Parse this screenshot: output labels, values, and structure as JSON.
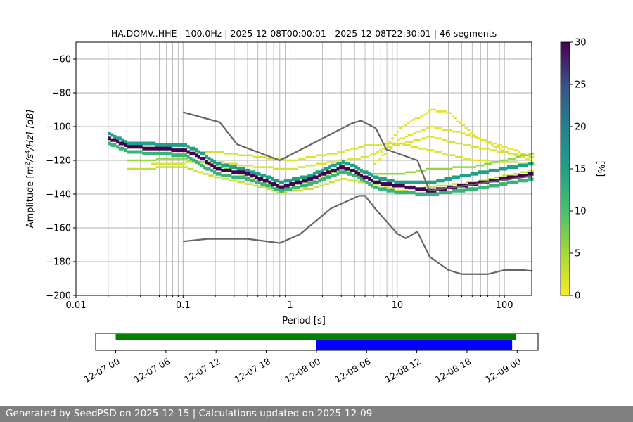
{
  "chart_data": {
    "type": "heatmap",
    "title": "HA.DOMV..HHE | 100.0Hz | 2025-12-08T00:00:01 - 2025-12-08T22:30:01 | 46 segments",
    "xlabel": "Period [s]",
    "ylabel_parts": [
      "Amplitude [",
      "m",
      "2",
      "/",
      "s",
      "4",
      "/Hz] [dB]"
    ],
    "xscale": "log",
    "xlim": [
      0.01,
      180
    ],
    "ylim": [
      -200,
      -50
    ],
    "grid": true,
    "x_ticks": [
      {
        "v": 0.01,
        "label": "0.01"
      },
      {
        "v": 0.1,
        "label": "0.1"
      },
      {
        "v": 1,
        "label": "1"
      },
      {
        "v": 10,
        "label": "10"
      },
      {
        "v": 100,
        "label": "100"
      }
    ],
    "y_ticks": [
      {
        "v": -60,
        "label": "−60"
      },
      {
        "v": -80,
        "label": "−80"
      },
      {
        "v": -100,
        "label": "−100"
      },
      {
        "v": -120,
        "label": "−120"
      },
      {
        "v": -140,
        "label": "−140"
      },
      {
        "v": -160,
        "label": "−160"
      },
      {
        "v": -180,
        "label": "−180"
      },
      {
        "v": -200,
        "label": "−200"
      }
    ],
    "colorbar": {
      "label": "[%]",
      "range": [
        0,
        30
      ],
      "colormap": "viridis_r",
      "ticks": [
        {
          "v": 0,
          "label": "0"
        },
        {
          "v": 5,
          "label": "5"
        },
        {
          "v": 10,
          "label": "10"
        },
        {
          "v": 15,
          "label": "15"
        },
        {
          "v": 20,
          "label": "20"
        },
        {
          "v": 25,
          "label": "25"
        },
        {
          "v": 30,
          "label": "30"
        }
      ]
    },
    "noise_models": [
      {
        "name": "high-noise-model",
        "color": "#666666",
        "points": [
          [
            0.1,
            -91.5
          ],
          [
            0.22,
            -97.4
          ],
          [
            0.32,
            -110.5
          ],
          [
            0.8,
            -120
          ],
          [
            3.8,
            -98
          ],
          [
            4.6,
            -96.5
          ],
          [
            6.3,
            -101
          ],
          [
            7.9,
            -113.5
          ],
          [
            15.4,
            -120
          ],
          [
            20,
            -138
          ],
          [
            180,
            -129.3
          ]
        ]
      },
      {
        "name": "low-noise-model",
        "color": "#666666",
        "points": [
          [
            0.1,
            -168
          ],
          [
            0.17,
            -166.5
          ],
          [
            0.4,
            -166.5
          ],
          [
            0.8,
            -169
          ],
          [
            1.24,
            -163.7
          ],
          [
            2.4,
            -148.5
          ],
          [
            4.4,
            -141
          ],
          [
            5,
            -141
          ],
          [
            6.3,
            -149
          ],
          [
            10,
            -163.4
          ],
          [
            12,
            -166.2
          ],
          [
            15.4,
            -162.2
          ],
          [
            20,
            -177
          ],
          [
            30,
            -185
          ],
          [
            40,
            -187.4
          ],
          [
            70,
            -187.4
          ],
          [
            100,
            -185
          ],
          [
            150,
            -185
          ],
          [
            180,
            -185.5
          ]
        ]
      }
    ],
    "psd_traces": [
      {
        "percent": 30,
        "points": [
          [
            0.02,
            -107
          ],
          [
            0.03,
            -112
          ],
          [
            0.1,
            -114
          ],
          [
            0.15,
            -119
          ],
          [
            0.2,
            -125
          ],
          [
            0.4,
            -128
          ],
          [
            0.8,
            -136
          ],
          [
            1.5,
            -131
          ],
          [
            3,
            -124
          ],
          [
            4,
            -127
          ],
          [
            6,
            -133
          ],
          [
            10,
            -135
          ],
          [
            20,
            -138
          ],
          [
            50,
            -134
          ],
          [
            180,
            -128
          ]
        ]
      },
      {
        "percent": 15,
        "points": [
          [
            0.02,
            -104
          ],
          [
            0.03,
            -110
          ],
          [
            0.1,
            -111
          ],
          [
            0.15,
            -116
          ],
          [
            0.2,
            -122
          ],
          [
            0.4,
            -126
          ],
          [
            0.8,
            -133
          ],
          [
            1.5,
            -129
          ],
          [
            3,
            -121
          ],
          [
            4,
            -124
          ],
          [
            6,
            -130
          ],
          [
            10,
            -133
          ],
          [
            20,
            -133
          ],
          [
            50,
            -128
          ],
          [
            180,
            -122
          ]
        ]
      },
      {
        "percent": 12,
        "points": [
          [
            0.02,
            -110
          ],
          [
            0.03,
            -115
          ],
          [
            0.1,
            -117
          ],
          [
            0.2,
            -128
          ],
          [
            0.4,
            -131
          ],
          [
            0.8,
            -138
          ],
          [
            1.5,
            -134
          ],
          [
            3,
            -127
          ],
          [
            4,
            -129
          ],
          [
            6,
            -136
          ],
          [
            10,
            -139
          ],
          [
            20,
            -140
          ],
          [
            50,
            -137
          ],
          [
            180,
            -131
          ]
        ]
      },
      {
        "percent": 6,
        "points": [
          [
            0.03,
            -120
          ],
          [
            0.1,
            -119
          ],
          [
            0.2,
            -123
          ],
          [
            0.4,
            -130
          ],
          [
            0.8,
            -135
          ],
          [
            1.5,
            -133
          ],
          [
            3,
            -125
          ],
          [
            6,
            -128
          ],
          [
            10,
            -128
          ],
          [
            20,
            -125
          ],
          [
            50,
            -124
          ],
          [
            180,
            -116
          ]
        ]
      },
      {
        "percent": 3,
        "points": [
          [
            0.03,
            -125
          ],
          [
            0.1,
            -124
          ],
          [
            0.2,
            -130
          ],
          [
            0.4,
            -134
          ],
          [
            0.8,
            -139
          ],
          [
            1.5,
            -137
          ],
          [
            3,
            -131
          ],
          [
            6,
            -134
          ],
          [
            10,
            -138
          ],
          [
            20,
            -136
          ],
          [
            50,
            -133
          ],
          [
            180,
            -126
          ]
        ]
      },
      {
        "percent": 2,
        "points": [
          [
            0.05,
            -116
          ],
          [
            0.2,
            -115
          ],
          [
            0.5,
            -118
          ],
          [
            1,
            -120
          ],
          [
            3,
            -115
          ],
          [
            5,
            -111
          ],
          [
            10,
            -110
          ],
          [
            20,
            -114
          ],
          [
            50,
            -120
          ],
          [
            180,
            -122
          ]
        ]
      },
      {
        "percent": 2,
        "points": [
          [
            0.05,
            -122
          ],
          [
            0.2,
            -121
          ],
          [
            0.5,
            -124
          ],
          [
            1,
            -125
          ],
          [
            3,
            -120
          ],
          [
            5,
            -118
          ],
          [
            8,
            -112
          ],
          [
            20,
            -106
          ],
          [
            50,
            -112
          ],
          [
            180,
            -118
          ]
        ]
      },
      {
        "percent": 1.5,
        "points": [
          [
            7,
            -115
          ],
          [
            10,
            -102
          ],
          [
            20,
            -90
          ],
          [
            30,
            -92
          ],
          [
            50,
            -105
          ],
          [
            100,
            -115
          ],
          [
            180,
            -120
          ]
        ]
      },
      {
        "percent": 1.5,
        "points": [
          [
            6,
            -122
          ],
          [
            10,
            -108
          ],
          [
            20,
            -100
          ],
          [
            40,
            -104
          ],
          [
            100,
            -112
          ],
          [
            180,
            -118
          ]
        ]
      }
    ]
  },
  "timeline": {
    "tick_labels": [
      "12-07 00",
      "12-07 06",
      "12-07 12",
      "12-07 18",
      "12-08 00",
      "12-08 06",
      "12-08 12",
      "12-08 18",
      "12-09 00"
    ],
    "xlim_hours": [
      -2.4,
      50.5
    ],
    "bars": [
      {
        "name": "available-data",
        "color": "#008000",
        "start_hour": 0,
        "end_hour": 47.9
      },
      {
        "name": "used-segments",
        "color": "#0000ff",
        "start_hour": 24,
        "end_hour": 47.4
      }
    ]
  },
  "footer": {
    "text": "Generated by SeedPSD on 2025-12-15 | Calculations updated on 2025-12-09"
  }
}
